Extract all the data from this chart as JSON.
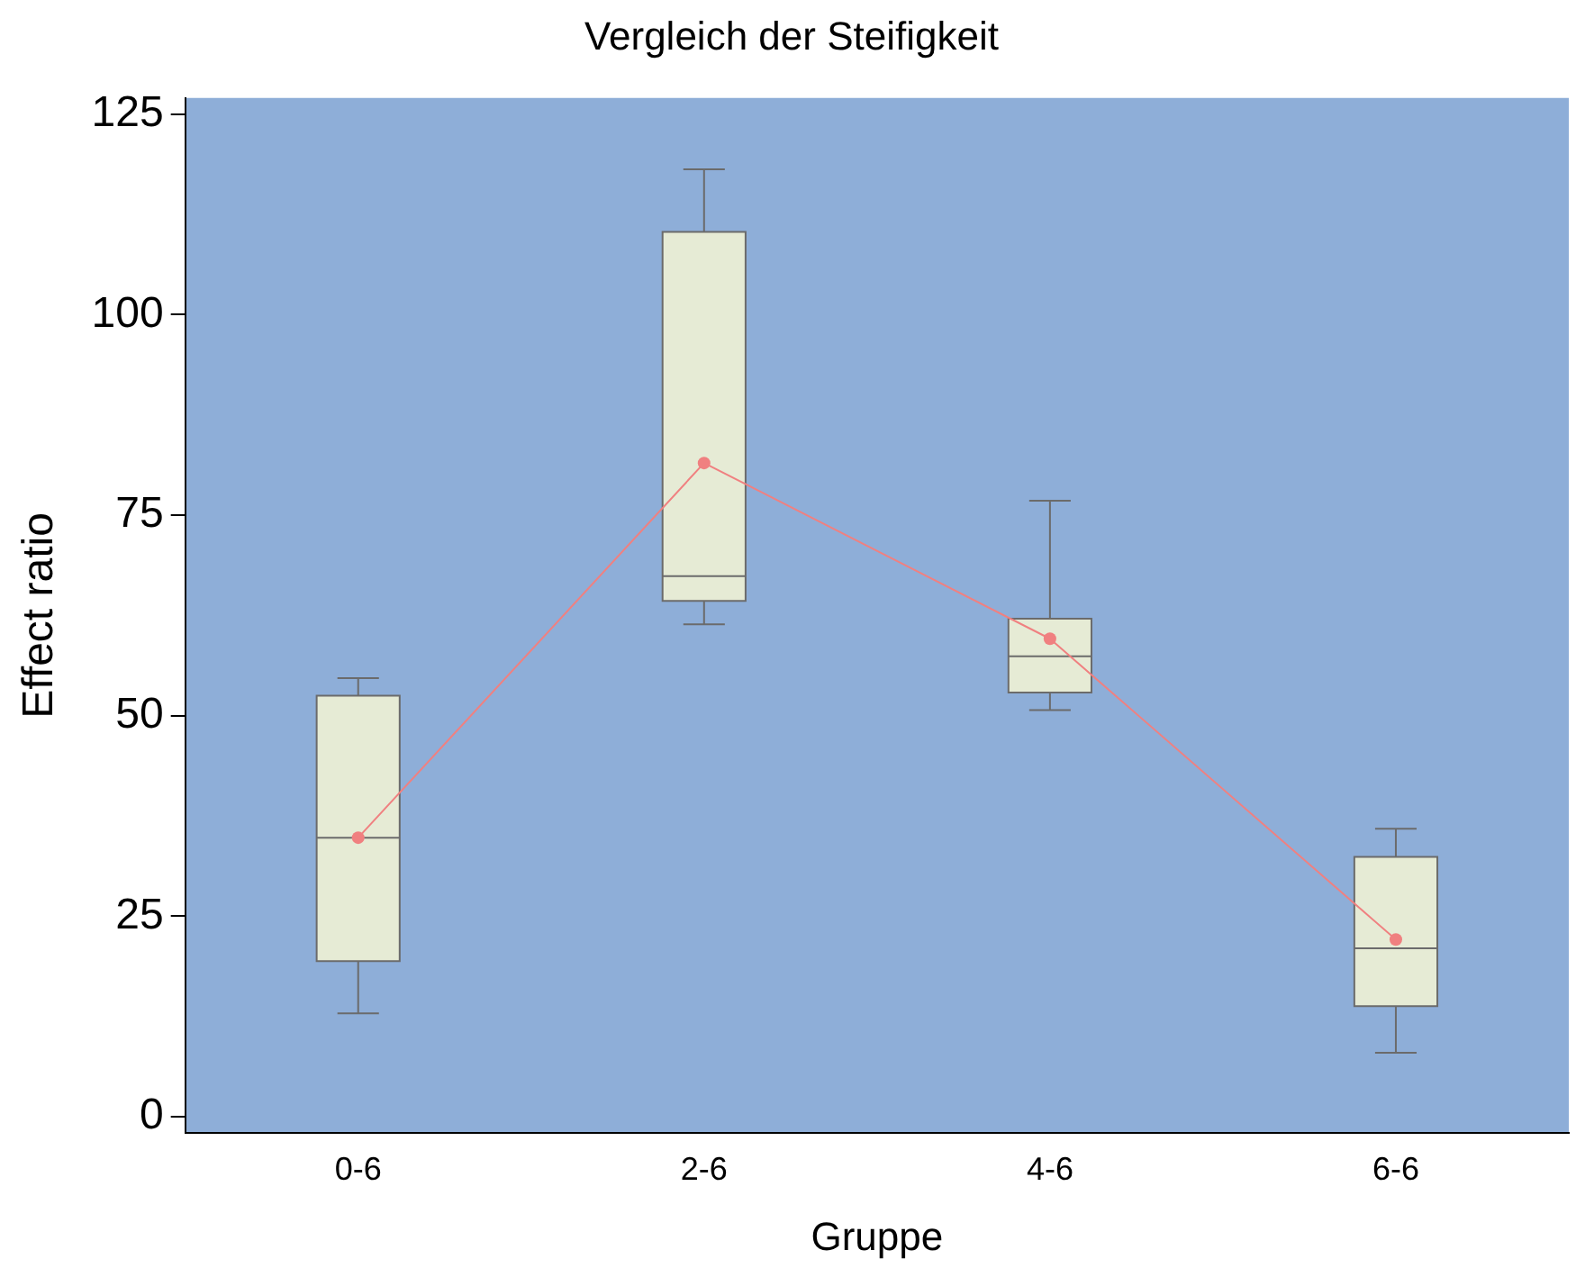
{
  "chart_data": {
    "type": "box",
    "title": "Vergleich der Steifigkeit",
    "xlabel": "Gruppe",
    "ylabel": "Effect ratio",
    "categories": [
      "0-6",
      "2-6",
      "4-6",
      "6-6"
    ],
    "color": "#e6ebd5",
    "boxes": [
      {
        "low": 12.9,
        "q1": 19.4,
        "median": 34.8,
        "q3": 52.5,
        "high": 54.7
      },
      {
        "low": 61.4,
        "q1": 64.3,
        "median": 67.4,
        "q3": 110.3,
        "high": 118.1
      },
      {
        "low": 50.7,
        "q1": 52.9,
        "median": 57.4,
        "q3": 62.1,
        "high": 76.8
      },
      {
        "low": 8.0,
        "q1": 13.8,
        "median": 21.0,
        "q3": 32.4,
        "high": 35.9
      }
    ],
    "series": [
      {
        "type": "line",
        "color": "#f08080",
        "marker": "circle",
        "values": [
          34.8,
          81.5,
          59.6,
          22.1
        ]
      }
    ],
    "ylim": [
      -2,
      127
    ],
    "yticks": [
      0,
      25,
      50,
      75,
      100,
      125
    ],
    "grid": false,
    "legend": false
  }
}
